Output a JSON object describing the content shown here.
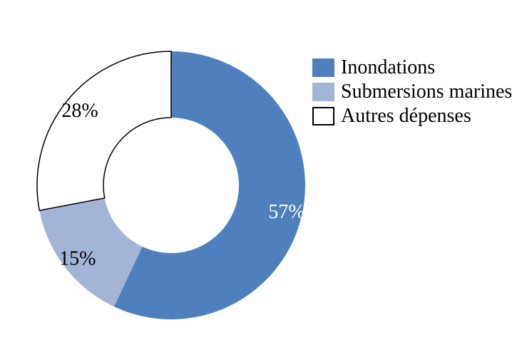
{
  "page": {
    "background_color": "#FFFFFF"
  },
  "chart_data": {
    "type": "pie",
    "subtype": "donut",
    "start_angle_deg": 0,
    "direction": "clockwise",
    "inner_radius_ratio": 0.505,
    "grid": false,
    "title": "",
    "segments": [
      {
        "name": "Inondations",
        "value_pct": 57,
        "data_label": "57%",
        "fill": "#4D80BD",
        "stroke": "none",
        "label_color": "#FFFFFF"
      },
      {
        "name": "Submersions marines",
        "value_pct": 15,
        "data_label": "15%",
        "fill": "#A2B5D6",
        "stroke": "none",
        "label_color": "#000000"
      },
      {
        "name": "Autres dépenses",
        "value_pct": 28,
        "data_label": "28%",
        "fill": "#FFFFFF",
        "stroke": "#000000",
        "label_color": "#000000"
      }
    ],
    "legend": {
      "position": "top-right"
    }
  }
}
